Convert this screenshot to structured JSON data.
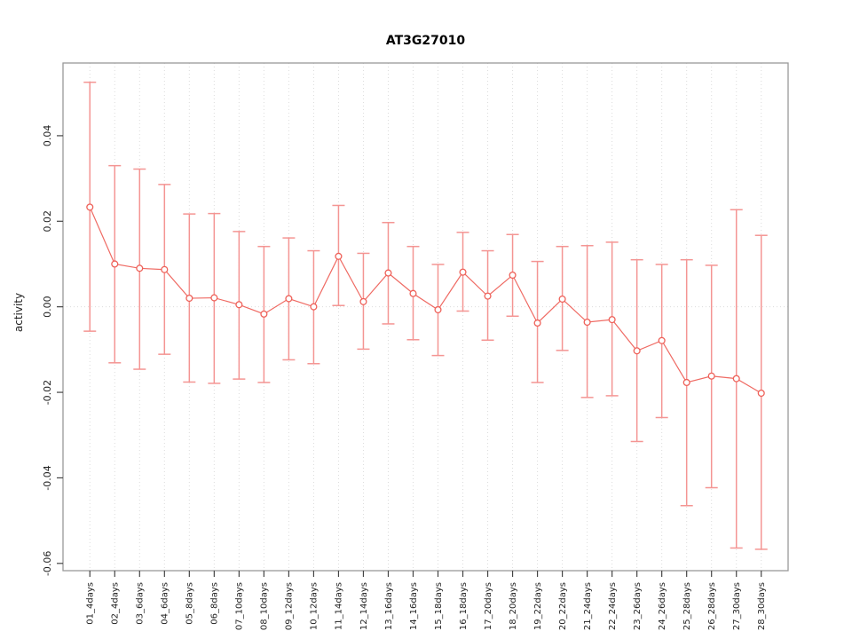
{
  "chart_data": {
    "type": "line",
    "title": "AT3G27010",
    "xlabel": "",
    "ylabel": "activity",
    "legend_position": "none",
    "grid": {
      "vertical_dotted": true,
      "horizontal_zero_dotted": true
    },
    "marker": "open-circle",
    "categories": [
      "01_4days",
      "02_4days",
      "03_6days",
      "04_6days",
      "05_8days",
      "06_8days",
      "07_10days",
      "08_10days",
      "09_12days",
      "10_12days",
      "11_14days",
      "12_14days",
      "13_16days",
      "14_16days",
      "15_18days",
      "16_18days",
      "17_20days",
      "18_20days",
      "19_22days",
      "20_22days",
      "21_24days",
      "22_24days",
      "23_26days",
      "24_26days",
      "25_28days",
      "26_28days",
      "27_30days",
      "28_30days"
    ],
    "series": [
      {
        "name": "activity",
        "values": [
          0.0233,
          0.01,
          0.009,
          0.0087,
          0.002,
          0.0021,
          0.0005,
          -0.0017,
          0.0019,
          0.0,
          0.0118,
          0.0012,
          0.0079,
          0.0031,
          -0.0007,
          0.0081,
          0.0025,
          0.0074,
          -0.0038,
          0.0018,
          -0.0036,
          -0.003,
          -0.0103,
          -0.0079,
          -0.0177,
          -0.0162,
          -0.0168,
          -0.0202
        ]
      }
    ],
    "error_high": [
      0.0525,
      0.033,
      0.0322,
      0.0286,
      0.0217,
      0.0218,
      0.0176,
      0.0141,
      0.0161,
      0.0131,
      0.0237,
      0.0125,
      0.0197,
      0.0141,
      0.0099,
      0.0174,
      0.0131,
      0.0169,
      0.0106,
      0.0141,
      0.0143,
      0.0151,
      0.011,
      0.0099,
      0.011,
      0.0097,
      0.0227,
      0.0167
    ],
    "error_low": [
      -0.0057,
      -0.0131,
      -0.0146,
      -0.0111,
      -0.0176,
      -0.0179,
      -0.0169,
      -0.0177,
      -0.0124,
      -0.0133,
      0.0003,
      -0.0099,
      -0.004,
      -0.0077,
      -0.0114,
      -0.001,
      -0.0078,
      -0.0022,
      -0.0177,
      -0.0102,
      -0.0212,
      -0.0208,
      -0.0315,
      -0.0259,
      -0.0465,
      -0.0423,
      -0.0564,
      -0.0567
    ],
    "yticks": [
      -0.06,
      -0.04,
      -0.02,
      0,
      0.02,
      0.04
    ],
    "ytick_labels": [
      "-0.06",
      "-0.04",
      "-0.02",
      "0.00",
      "0.02",
      "0.04"
    ],
    "ylim": [
      -0.0617,
      0.057
    ],
    "colors": {
      "point": "#ee6159",
      "line": "#ef6a63",
      "error_bar": "#f49593",
      "grid": "#dcdcdc",
      "box": "#999999",
      "tick": "#444444",
      "text": "#222222"
    }
  }
}
